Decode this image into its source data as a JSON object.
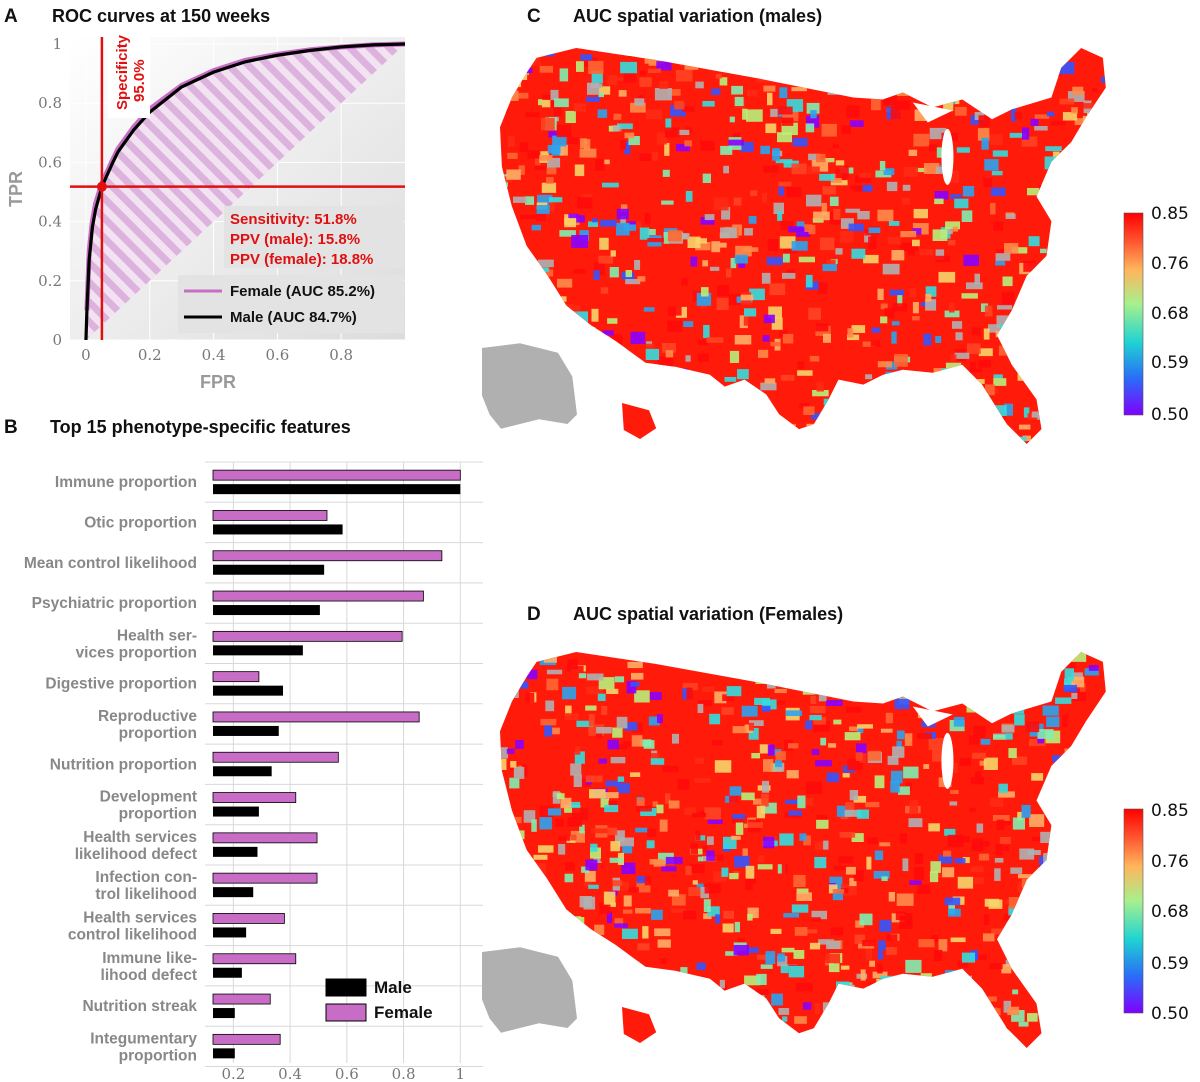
{
  "colors": {
    "female": "#c86dc6",
    "male": "#000000",
    "annotation": "#e01010",
    "map_land": "#ff1a0a",
    "map_missing": "#b0b0b0"
  },
  "panels": {
    "A": {
      "letter": "A",
      "title": "ROC curves at 150 weeks"
    },
    "B": {
      "letter": "B",
      "title": "Top 15 phenotype-specific features"
    },
    "C": {
      "letter": "C",
      "title": "AUC spatial variation (males)"
    },
    "D": {
      "letter": "D",
      "title": "AUC spatial variation (Females)"
    }
  },
  "chart_data": [
    {
      "id": "A",
      "type": "line",
      "title": "ROC curves at 150 weeks",
      "xlabel": "FPR",
      "ylabel": "TPR",
      "xlim": [
        -0.05,
        1.0
      ],
      "ylim": [
        0,
        1
      ],
      "xticks": [
        "0",
        "0.2",
        "0.4",
        "0.6",
        "0.8"
      ],
      "yticks": [
        "0",
        "0.2",
        "0.4",
        "0.6",
        "0.8",
        "1"
      ],
      "series": [
        {
          "name": "Female (AUC 85.2%)",
          "x": [
            0.003,
            0.01,
            0.02,
            0.03,
            0.05,
            0.08,
            0.1,
            0.15,
            0.2,
            0.3,
            0.4,
            0.5,
            0.6,
            0.7,
            0.8,
            0.9,
            1.0
          ],
          "y": [
            0.1,
            0.3,
            0.4,
            0.46,
            0.53,
            0.6,
            0.645,
            0.72,
            0.78,
            0.86,
            0.91,
            0.945,
            0.965,
            0.98,
            0.99,
            0.997,
            1.0
          ]
        },
        {
          "name": "Male (AUC 84.7%)",
          "x": [
            0.0,
            0.003,
            0.01,
            0.02,
            0.03,
            0.05,
            0.08,
            0.1,
            0.15,
            0.2,
            0.3,
            0.4,
            0.5,
            0.6,
            0.7,
            0.8,
            0.9,
            1.0
          ],
          "y": [
            0.0,
            0.1,
            0.27,
            0.38,
            0.44,
            0.518,
            0.59,
            0.635,
            0.71,
            0.77,
            0.855,
            0.905,
            0.94,
            0.962,
            0.978,
            0.99,
            0.997,
            1.0
          ]
        }
      ],
      "operating_point": {
        "fpr": 0.05,
        "tpr": 0.518
      },
      "annotations": {
        "specificity": [
          "Specificity",
          "95.0%"
        ],
        "stats": [
          "Sensitivity: 51.8%",
          "PPV (male): 15.8%",
          "PPV (female): 18.8%"
        ]
      },
      "legend_position": "bottom-right"
    },
    {
      "id": "B",
      "type": "bar",
      "orientation": "horizontal",
      "title": "Top 15 phenotype-specific features",
      "xlim": [
        0.1,
        1.08
      ],
      "xticks": [
        "0.2",
        "0.4",
        "0.6",
        "0.8",
        "1"
      ],
      "categories": [
        [
          "Immune proportion"
        ],
        [
          "Otic proportion"
        ],
        [
          "Mean control likelihood"
        ],
        [
          "Psychiatric proportion"
        ],
        [
          "Health ser-",
          "vices proportion"
        ],
        [
          "Digestive proportion"
        ],
        [
          "Reproductive",
          "proportion"
        ],
        [
          "Nutrition proportion"
        ],
        [
          "Development",
          "proportion"
        ],
        [
          "Health services",
          "likelihood defect"
        ],
        [
          "Infection con-",
          "trol likelihood"
        ],
        [
          "Health services",
          "control likelihood"
        ],
        [
          "Immune like-",
          "lihood defect"
        ],
        [
          "Nutrition streak"
        ],
        [
          "Integumentary",
          "proportion"
        ]
      ],
      "series": [
        {
          "name": "Female",
          "values": [
            1.0,
            0.53,
            0.935,
            0.87,
            0.795,
            0.29,
            0.855,
            0.57,
            0.42,
            0.495,
            0.495,
            0.38,
            0.42,
            0.33,
            0.365
          ]
        },
        {
          "name": "Male",
          "values": [
            1.0,
            0.585,
            0.52,
            0.505,
            0.445,
            0.375,
            0.36,
            0.335,
            0.29,
            0.285,
            0.27,
            0.245,
            0.23,
            0.205,
            0.205
          ]
        }
      ],
      "legend_position": "bottom-right",
      "grid": true
    }
  ],
  "maps": {
    "C": {
      "colorbar_ticks": [
        "0.85",
        "0.76",
        "0.68",
        "0.59",
        "0.50"
      ]
    },
    "D": {
      "colorbar_ticks": [
        "0.85",
        "0.76",
        "0.68",
        "0.59",
        "0.50"
      ]
    }
  }
}
